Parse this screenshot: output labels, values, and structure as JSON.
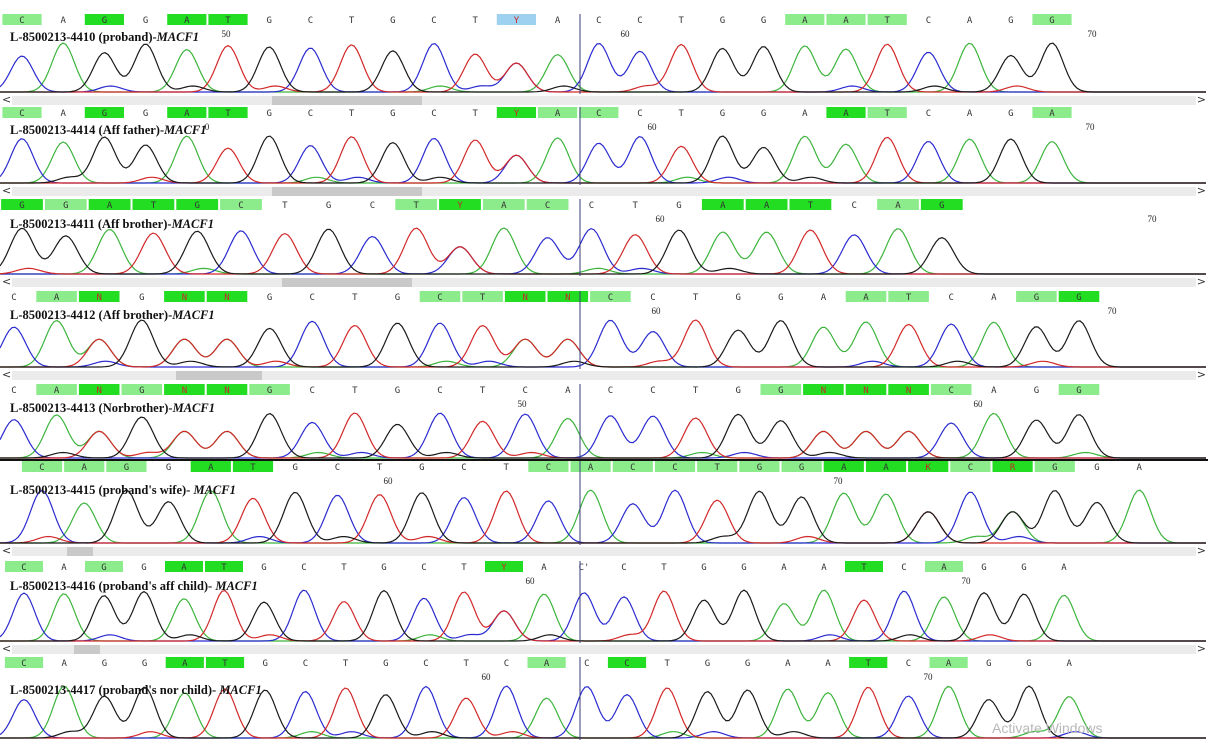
{
  "colors": {
    "peak_a": "#3cb43c",
    "peak_c": "#2b2bd0",
    "peak_g": "#1a1a1a",
    "peak_t": "#d22828",
    "base_hl_strong": "#22dd22",
    "base_hl_light": "#8cec8c",
    "base_hl_het": "#9ed0f0",
    "cursor": "#3a3a7a"
  },
  "tracks": [
    {
      "sample_id": "L-8500213-4410",
      "desc": "(proband)-",
      "gene": "MACF1",
      "pos_left": "50",
      "pos_right": "60",
      "pos_right2": "70",
      "bases": [
        "C",
        "A",
        "G",
        "G",
        "A",
        "T",
        "G",
        "C",
        "T",
        "G",
        "C",
        "T",
        "Y",
        "A",
        "C",
        "C",
        "T",
        "G",
        "G",
        "A",
        "A",
        "T",
        "C",
        "A",
        "G",
        "G"
      ]
    },
    {
      "sample_id": "L-8500213-4414",
      "desc": "(Aff father)-",
      "gene": "MACF1",
      "pos_left": "0",
      "pos_right": "60",
      "pos_right2": "70",
      "bases": [
        "C",
        "A",
        "G",
        "G",
        "A",
        "T",
        "G",
        "C",
        "T",
        "G",
        "C",
        "T",
        "Y",
        "A",
        "C",
        "C",
        "T",
        "G",
        "G",
        "A",
        "A",
        "T",
        "C",
        "A",
        "G",
        "A"
      ]
    },
    {
      "sample_id": "L-8500213-4411",
      "desc": "(Aff brother)-",
      "gene": "MACF1",
      "pos_left": "",
      "pos_right": "60",
      "pos_right2": "70",
      "bases": [
        "G",
        "G",
        "A",
        "T",
        "G",
        "C",
        "T",
        "G",
        "C",
        "T",
        "Y",
        "A",
        "C",
        "C",
        "T",
        "G",
        "A",
        "A",
        "T",
        "C",
        "A",
        "G"
      ]
    },
    {
      "sample_id": "L-8500213-4412",
      "desc": "(Aff brother)-",
      "gene": "MACF1",
      "pos_left": "",
      "pos_right": "60",
      "pos_right2": "70",
      "bases": [
        "C",
        "A",
        "N",
        "G",
        "N",
        "N",
        "G",
        "C",
        "T",
        "G",
        "C",
        "T",
        "N",
        "N",
        "C",
        "C",
        "T",
        "G",
        "G",
        "A",
        "A",
        "T",
        "C",
        "A",
        "G",
        "G"
      ]
    },
    {
      "sample_id": "L-8500213-4413",
      "desc": "(Norbrother)-",
      "gene": "MACF1",
      "pos_left": "50",
      "pos_right": "60",
      "pos_right2": "",
      "bases": [
        "C",
        "A",
        "N",
        "G",
        "N",
        "N",
        "G",
        "C",
        "T",
        "G",
        "C",
        "T",
        "C",
        "A",
        "C",
        "C",
        "T",
        "G",
        "G",
        "N",
        "N",
        "N",
        "C",
        "A",
        "G",
        "G"
      ]
    },
    {
      "sample_id": "L-8500213-4415",
      "desc": "(proband's wife)- ",
      "gene": "MACF1",
      "pos_left": "60",
      "pos_right": "70",
      "pos_right2": "",
      "bases": [
        "C",
        "A",
        "G",
        "G",
        "A",
        "T",
        "G",
        "C",
        "T",
        "G",
        "C",
        "T",
        "C",
        "A",
        "C",
        "C",
        "T",
        "G",
        "G",
        "A",
        "A",
        "K",
        "C",
        "R",
        "G",
        "G",
        "A"
      ]
    },
    {
      "sample_id": "L-8500213-4416",
      "desc": "(proband's aff child)- ",
      "gene": "MACF1",
      "pos_left": "60",
      "pos_right": "70",
      "pos_right2": "",
      "bases": [
        "C",
        "A",
        "G",
        "G",
        "A",
        "T",
        "G",
        "C",
        "T",
        "G",
        "C",
        "T",
        "Y",
        "A",
        "C'",
        "C",
        "T",
        "G",
        "G",
        "A",
        "A",
        "T",
        "C",
        "A",
        "G",
        "G",
        "A"
      ]
    },
    {
      "sample_id": "L-8500213-4417",
      "desc": "(proband's nor child)- ",
      "gene": "MACF1",
      "pos_left": "60",
      "pos_right": "70",
      "pos_right2": "",
      "bases": [
        "C",
        "A",
        "G",
        "G",
        "A",
        "T",
        "G",
        "C",
        "T",
        "G",
        "C",
        "T",
        "C",
        "A",
        "C",
        "C",
        "T",
        "G",
        "G",
        "A",
        "A",
        "T",
        "C",
        "A",
        "G",
        "G",
        "A"
      ]
    }
  ],
  "scroll_left_glyph": "<",
  "scroll_right_glyph": ">",
  "watermark": "Activate Windows"
}
